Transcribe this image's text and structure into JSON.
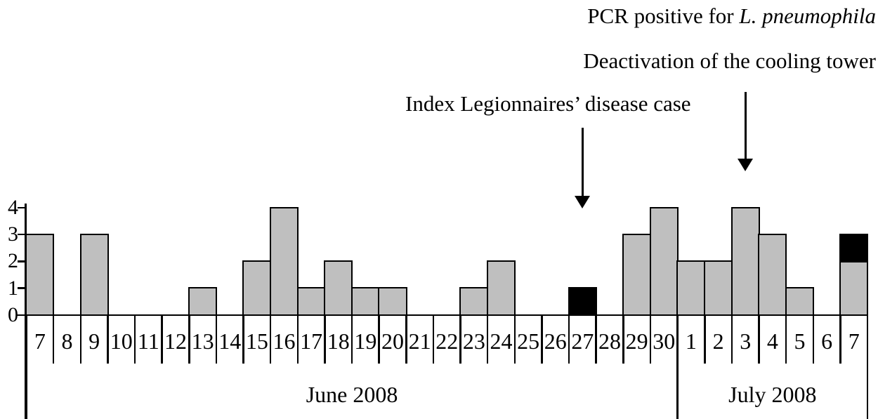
{
  "annotations": {
    "pcr_prefix": "PCR positive for ",
    "pcr_italic": "L. pneumophila",
    "deactivation": "Deactivation of the cooling tower",
    "index_case": "Index Legionnaires’ disease case"
  },
  "chart_data": {
    "type": "bar",
    "title": "",
    "xlabel": "",
    "ylabel": "",
    "ylim": [
      0,
      4
    ],
    "yticks": [
      0,
      1,
      2,
      3,
      4
    ],
    "grid": false,
    "legend": null,
    "bar_fill": "#bfbfbf",
    "highlight_fill": "#000000",
    "months": [
      {
        "label": "June 2008",
        "num_days": 24
      },
      {
        "label": "July 2008",
        "num_days": 7
      }
    ],
    "days": [
      {
        "month": "June",
        "day": "7",
        "gray": 3,
        "black": 0
      },
      {
        "month": "June",
        "day": "8",
        "gray": 0,
        "black": 0
      },
      {
        "month": "June",
        "day": "9",
        "gray": 3,
        "black": 0
      },
      {
        "month": "June",
        "day": "10",
        "gray": 0,
        "black": 0
      },
      {
        "month": "June",
        "day": "11",
        "gray": 0,
        "black": 0
      },
      {
        "month": "June",
        "day": "12",
        "gray": 0,
        "black": 0
      },
      {
        "month": "June",
        "day": "13",
        "gray": 1,
        "black": 0
      },
      {
        "month": "June",
        "day": "14",
        "gray": 0,
        "black": 0
      },
      {
        "month": "June",
        "day": "15",
        "gray": 2,
        "black": 0
      },
      {
        "month": "June",
        "day": "16",
        "gray": 4,
        "black": 0
      },
      {
        "month": "June",
        "day": "17",
        "gray": 1,
        "black": 0
      },
      {
        "month": "June",
        "day": "18",
        "gray": 2,
        "black": 0
      },
      {
        "month": "June",
        "day": "19",
        "gray": 1,
        "black": 0
      },
      {
        "month": "June",
        "day": "20",
        "gray": 1,
        "black": 0
      },
      {
        "month": "June",
        "day": "21",
        "gray": 0,
        "black": 0
      },
      {
        "month": "June",
        "day": "22",
        "gray": 0,
        "black": 0
      },
      {
        "month": "June",
        "day": "23",
        "gray": 1,
        "black": 0
      },
      {
        "month": "June",
        "day": "24",
        "gray": 2,
        "black": 0
      },
      {
        "month": "June",
        "day": "25",
        "gray": 0,
        "black": 0
      },
      {
        "month": "June",
        "day": "26",
        "gray": 0,
        "black": 0
      },
      {
        "month": "June",
        "day": "27",
        "gray": 0,
        "black": 1
      },
      {
        "month": "June",
        "day": "28",
        "gray": 0,
        "black": 0
      },
      {
        "month": "June",
        "day": "29",
        "gray": 3,
        "black": 0
      },
      {
        "month": "June",
        "day": "30",
        "gray": 4,
        "black": 0
      },
      {
        "month": "July",
        "day": "1",
        "gray": 2,
        "black": 0
      },
      {
        "month": "July",
        "day": "2",
        "gray": 2,
        "black": 0
      },
      {
        "month": "July",
        "day": "3",
        "gray": 4,
        "black": 0
      },
      {
        "month": "July",
        "day": "4",
        "gray": 3,
        "black": 0
      },
      {
        "month": "July",
        "day": "5",
        "gray": 1,
        "black": 0
      },
      {
        "month": "July",
        "day": "6",
        "gray": 0,
        "black": 0
      },
      {
        "month": "July",
        "day": "7",
        "gray": 2,
        "black": 1
      }
    ],
    "arrows": [
      {
        "label": "Index Legionnaires’ disease case",
        "month": "June",
        "day": "27"
      },
      {
        "label": "Deactivation of the cooling tower",
        "month": "July",
        "day": "3"
      }
    ]
  }
}
